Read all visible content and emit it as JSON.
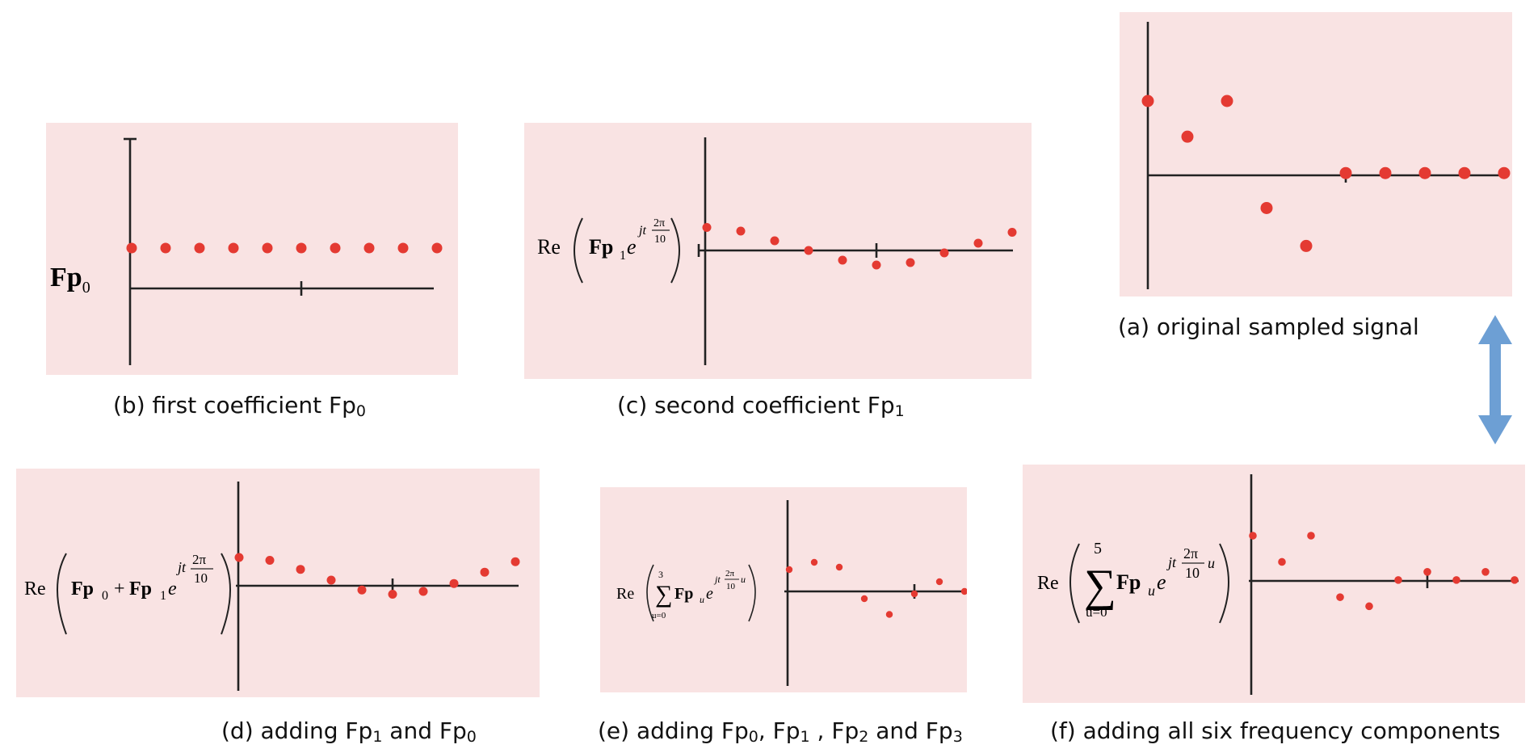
{
  "panels": {
    "a": {
      "caption": "(a) original sampled signal",
      "values": [
        1.0,
        0.52,
        1.0,
        -0.44,
        -0.95,
        0.03,
        0.03,
        0.03,
        0.03,
        0.03
      ],
      "x_ticks": [
        5
      ]
    },
    "b": {
      "caption_main": "(b) first coefficient Fp",
      "caption_sub": "0",
      "label_main": "Fp",
      "label_sub": "0",
      "values": [
        1.0,
        1.0,
        1.0,
        1.0,
        1.0,
        1.0,
        1.0,
        1.0,
        1.0,
        1.0
      ],
      "x_ticks": [
        5
      ]
    },
    "c": {
      "caption_main": "(c) second coefficient Fp",
      "caption_sub": "1",
      "formula": {
        "re": "Re",
        "fp": "Fp",
        "fp_sub": "1",
        "e": "e",
        "exp": "jt",
        "num": "2π",
        "den": "10"
      },
      "values": [
        0.95,
        0.8,
        0.4,
        0.0,
        -0.4,
        -0.6,
        -0.5,
        -0.1,
        0.3,
        0.75
      ],
      "x_ticks": [
        5
      ]
    },
    "d": {
      "caption_pre": "(d) adding Fp",
      "caption_sub1": "1",
      "caption_mid": " and Fp",
      "caption_sub2": "0",
      "formula": {
        "re": "Re",
        "fp0": "Fp",
        "sub0": "0",
        "plus": "+",
        "fp1": "Fp",
        "sub1": "1",
        "e": "e",
        "exp": "jt",
        "num": "2π",
        "den": "10"
      },
      "values": [
        1.0,
        0.9,
        0.58,
        0.2,
        -0.15,
        -0.3,
        -0.2,
        0.08,
        0.48,
        0.85
      ],
      "x_ticks": [
        5
      ]
    },
    "e": {
      "caption_pre": "(e) adding Fp",
      "caption_sub0": "0",
      "caption_c1": ", Fp",
      "caption_sub1": "1",
      "caption_c2": " , Fp",
      "caption_sub2": "2",
      "caption_c3": " and Fp",
      "caption_sub3": "3",
      "formula": {
        "re": "Re",
        "sum_top": "3",
        "sum_bottom": "u=0",
        "sigma": "∑",
        "fp": "Fp",
        "fp_sub": "u",
        "e": "e",
        "exp": "jt",
        "num": "2π",
        "den": "10",
        "u": "u"
      },
      "values": [
        0.9,
        1.2,
        1.0,
        -0.3,
        -0.95,
        -0.1,
        0.4,
        0.0
      ],
      "x_ticks": [
        5
      ]
    },
    "f": {
      "caption": "(f) adding all six frequency components",
      "formula": {
        "re": "Re",
        "sum_top": "5",
        "sum_bottom": "u=0",
        "sigma": "∑",
        "fp": "Fp",
        "fp_sub": "u",
        "e": "e",
        "exp": "jt",
        "num": "2π",
        "den": "10",
        "u": "u"
      },
      "values": [
        1.0,
        0.42,
        1.0,
        -0.36,
        -0.56,
        0.02,
        0.2,
        0.02,
        0.2,
        0.02
      ],
      "x_ticks": [
        6
      ]
    }
  },
  "colors": {
    "panel_bg": "#f9e3e3",
    "dot": "#e43a32",
    "axis": "#222222",
    "arrow": "#6d9fd4"
  }
}
